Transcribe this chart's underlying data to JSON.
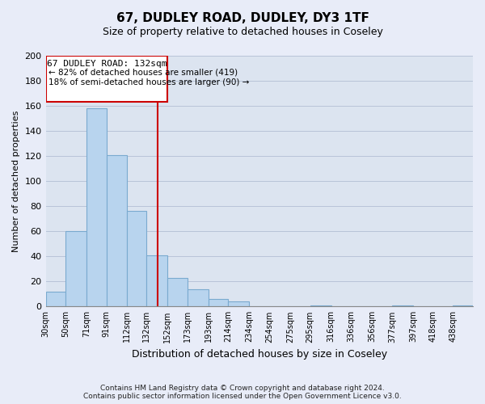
{
  "title": "67, DUDLEY ROAD, DUDLEY, DY3 1TF",
  "subtitle": "Size of property relative to detached houses in Coseley",
  "xlabel": "Distribution of detached houses by size in Coseley",
  "ylabel": "Number of detached properties",
  "bar_values": [
    12,
    60,
    158,
    121,
    76,
    41,
    23,
    14,
    6,
    4,
    0,
    0,
    0,
    1,
    0,
    0,
    0,
    1,
    0,
    0,
    1
  ],
  "bar_labels": [
    "30sqm",
    "50sqm",
    "71sqm",
    "91sqm",
    "112sqm",
    "132sqm",
    "152sqm",
    "173sqm",
    "193sqm",
    "214sqm",
    "234sqm",
    "254sqm",
    "275sqm",
    "295sqm",
    "316sqm",
    "336sqm",
    "356sqm",
    "377sqm",
    "397sqm",
    "418sqm",
    "438sqm"
  ],
  "bin_edges": [
    20,
    40,
    61,
    81,
    101,
    121,
    142,
    162,
    183,
    203,
    224,
    244,
    265,
    285,
    306,
    326,
    347,
    367,
    388,
    408,
    428,
    448
  ],
  "bar_color": "#b8d4ee",
  "bar_edge_color": "#7aaacf",
  "vline_x": 132,
  "vline_color": "#cc0000",
  "ylim": [
    0,
    200
  ],
  "yticks": [
    0,
    20,
    40,
    60,
    80,
    100,
    120,
    140,
    160,
    180,
    200
  ],
  "annotation_title": "67 DUDLEY ROAD: 132sqm",
  "annotation_line1": "← 82% of detached houses are smaller (419)",
  "annotation_line2": "18% of semi-detached houses are larger (90) →",
  "box_color": "#cc0000",
  "footnote1": "Contains HM Land Registry data © Crown copyright and database right 2024.",
  "footnote2": "Contains public sector information licensed under the Open Government Licence v3.0.",
  "bg_color": "#e8ecf8",
  "plot_bg_color": "#dce4f0",
  "grid_color": "#b8c4d8"
}
